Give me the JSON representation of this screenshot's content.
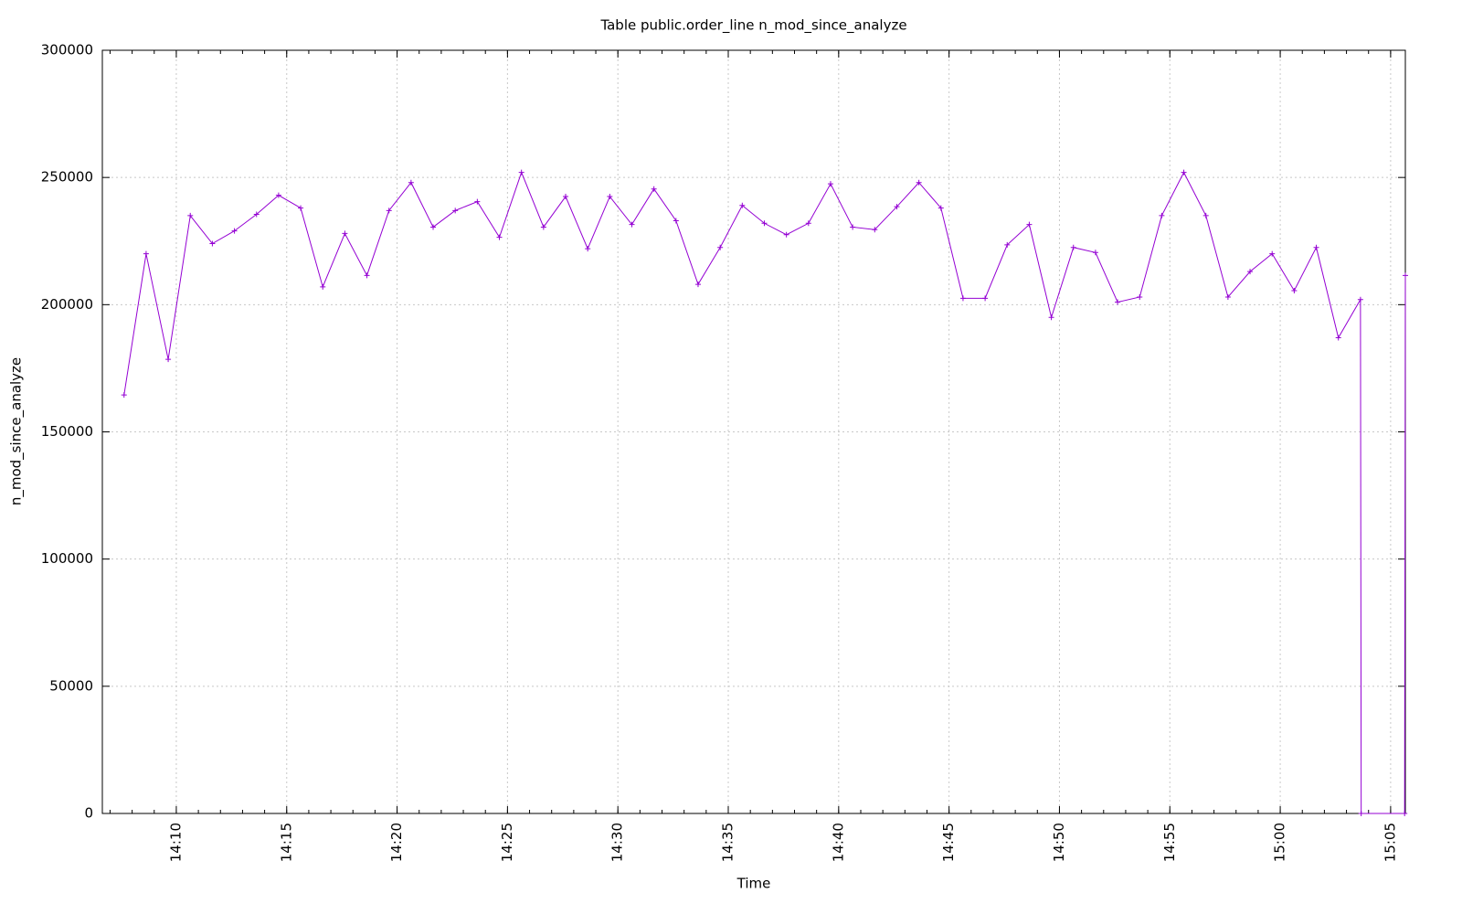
{
  "chart_data": {
    "type": "line",
    "title": "Table public.order_line n_mod_since_analyze",
    "xlabel": "Time",
    "ylabel": "n_mod_since_analyze",
    "x": [
      "14:07:38",
      "14:08:38",
      "14:09:38",
      "14:10:38",
      "14:11:38",
      "14:12:38",
      "14:13:38",
      "14:14:38",
      "14:15:38",
      "14:16:38",
      "14:17:38",
      "14:18:38",
      "14:19:38",
      "14:20:38",
      "14:21:38",
      "14:22:38",
      "14:23:38",
      "14:24:38",
      "14:25:38",
      "14:26:38",
      "14:27:38",
      "14:28:38",
      "14:29:38",
      "14:30:38",
      "14:31:38",
      "14:32:38",
      "14:33:38",
      "14:34:38",
      "14:35:38",
      "14:36:38",
      "14:37:38",
      "14:38:38",
      "14:39:38",
      "14:40:38",
      "14:41:38",
      "14:42:38",
      "14:43:38",
      "14:44:38",
      "14:45:38",
      "14:46:38",
      "14:47:38",
      "14:48:38",
      "14:49:38",
      "14:50:38",
      "14:51:38",
      "14:52:38",
      "14:53:38",
      "14:54:38",
      "14:55:38",
      "14:56:38",
      "14:57:38",
      "14:58:38",
      "14:59:38",
      "15:00:38",
      "15:01:38",
      "15:02:38",
      "15:03:38",
      "15:03:40",
      "15:05:38",
      "15:05:40"
    ],
    "series": [
      {
        "name": "n_mod_since_analyze",
        "color": "#9400d3",
        "values": [
          164500,
          220000,
          178500,
          235000,
          224000,
          229000,
          235500,
          243000,
          238000,
          207000,
          228000,
          211500,
          237000,
          248000,
          230500,
          237000,
          240500,
          226500,
          252000,
          230500,
          242500,
          222000,
          242500,
          231500,
          245500,
          233000,
          208000,
          222500,
          239000,
          232000,
          227500,
          232000,
          247500,
          230500,
          229500,
          238500,
          248000,
          238000,
          202500,
          202500,
          223500,
          231500,
          195000,
          222500,
          220500,
          201000,
          203000,
          235000,
          252000,
          235000,
          203000,
          213000,
          220000,
          205500,
          222500,
          187000,
          202000,
          0,
          0,
          211500
        ]
      }
    ],
    "xlim": [
      "14:06:39",
      "15:05:40"
    ],
    "xticks": [
      "14:10",
      "14:15",
      "14:20",
      "14:25",
      "14:30",
      "14:35",
      "14:40",
      "14:45",
      "14:50",
      "14:55",
      "15:00",
      "15:05"
    ],
    "ylim": [
      0,
      300000
    ],
    "yticks": [
      0,
      50000,
      100000,
      150000,
      200000,
      250000,
      300000
    ],
    "grid": true
  }
}
